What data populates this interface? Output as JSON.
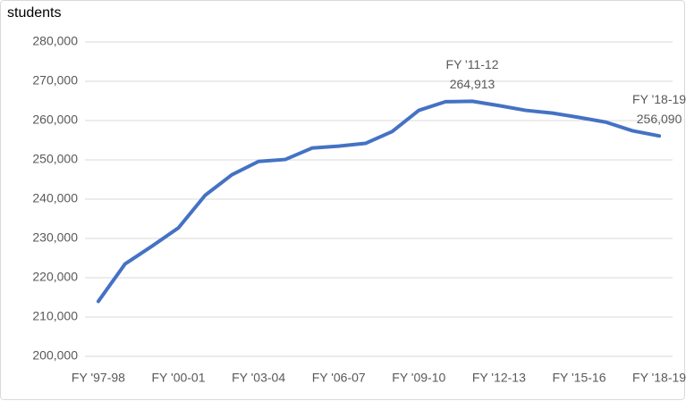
{
  "chart_data": {
    "type": "line",
    "ylabel": "students",
    "categories": [
      "FY '97-98",
      null,
      null,
      "FY '00-01",
      null,
      null,
      "FY '03-04",
      null,
      null,
      "FY '06-07",
      null,
      null,
      "FY '09-10",
      null,
      null,
      "FY '12-13",
      null,
      null,
      "FY '15-16",
      null,
      null,
      "FY '18-19"
    ],
    "series": [
      {
        "name": "students",
        "color": "#4472c4",
        "values": [
          214000,
          223500,
          228000,
          232700,
          241000,
          246200,
          249600,
          250100,
          253000,
          253500,
          254200,
          257200,
          262600,
          264800,
          264913,
          263800,
          262600,
          261900,
          260800,
          259600,
          257400,
          256090
        ],
        "value_labels": [
          null,
          null,
          null,
          null,
          null,
          null,
          null,
          null,
          null,
          null,
          null,
          null,
          null,
          null,
          "264,913",
          null,
          null,
          null,
          null,
          null,
          null,
          "256,090"
        ],
        "point_labels": [
          null,
          null,
          null,
          null,
          null,
          null,
          null,
          null,
          null,
          null,
          null,
          null,
          null,
          null,
          "FY '11-12",
          null,
          null,
          null,
          null,
          null,
          null,
          "FY '18-19"
        ]
      }
    ],
    "ylim": [
      200000,
      280000
    ],
    "yticks": [
      {
        "value": 200000,
        "label": "200,000"
      },
      {
        "value": 210000,
        "label": "210,000"
      },
      {
        "value": 220000,
        "label": "220,000"
      },
      {
        "value": 230000,
        "label": "230,000"
      },
      {
        "value": 240000,
        "label": "240,000"
      },
      {
        "value": 250000,
        "label": "250,000"
      },
      {
        "value": 260000,
        "label": "260,000"
      },
      {
        "value": 270000,
        "label": "270,000"
      },
      {
        "value": 280000,
        "label": "280,000"
      }
    ],
    "grid": true
  }
}
